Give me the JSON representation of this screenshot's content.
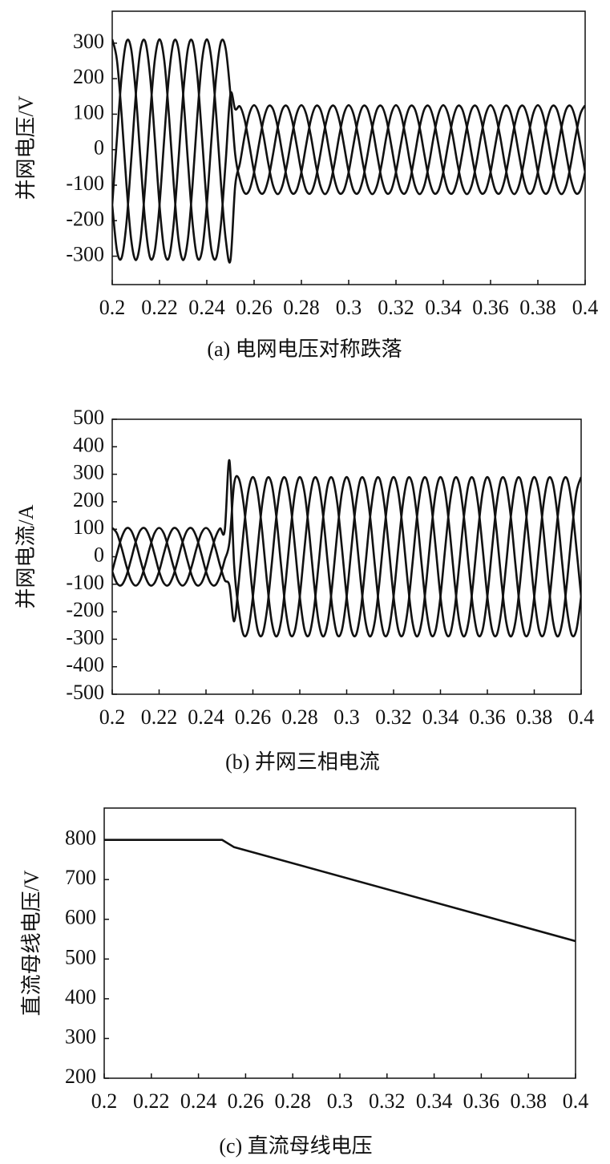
{
  "chart_data": [
    {
      "type": "line",
      "ylabel": "并网电压/V",
      "caption": "(a) 电网电压对称跌落",
      "xlim": [
        0.2,
        0.4
      ],
      "xticks": [
        0.2,
        0.22,
        0.24,
        0.26,
        0.28,
        0.3,
        0.32,
        0.34,
        0.36,
        0.38,
        0.4
      ],
      "ylim": [
        -380,
        390
      ],
      "yticks": [
        -300,
        -200,
        -100,
        0,
        100,
        200,
        300
      ],
      "x": [
        0.2,
        0.202,
        0.204,
        0.206,
        0.208,
        0.21,
        0.212,
        0.214,
        0.216,
        0.218,
        0.22,
        0.222,
        0.224,
        0.226,
        0.228,
        0.23,
        0.232,
        0.234,
        0.236,
        0.238,
        0.24,
        0.242,
        0.244,
        0.246,
        0.248,
        0.25,
        0.252,
        0.254,
        0.256,
        0.258,
        0.26,
        0.262,
        0.264,
        0.266,
        0.268,
        0.27,
        0.272,
        0.274,
        0.276,
        0.278,
        0.28,
        0.282,
        0.284,
        0.286,
        0.288,
        0.29,
        0.292,
        0.294,
        0.296,
        0.298,
        0.3,
        0.302,
        0.304,
        0.306,
        0.308,
        0.31,
        0.312,
        0.314,
        0.316,
        0.318,
        0.32,
        0.322,
        0.324,
        0.326,
        0.328,
        0.33,
        0.332,
        0.334,
        0.336,
        0.338,
        0.34,
        0.342,
        0.344,
        0.346,
        0.348,
        0.35,
        0.352,
        0.354,
        0.356,
        0.358,
        0.36,
        0.362,
        0.364,
        0.366,
        0.368,
        0.37,
        0.372,
        0.374,
        0.376,
        0.378,
        0.38,
        0.382,
        0.384,
        0.386,
        0.388,
        0.39,
        0.392,
        0.394,
        0.396,
        0.398,
        0.4
      ],
      "series": [
        {
          "color": "#111111",
          "values": [
            311,
            252,
            96,
            -96,
            -252,
            -311,
            -252,
            -96,
            96,
            252,
            311,
            252,
            96,
            -96,
            -252,
            -311,
            -252,
            -96,
            96,
            252,
            311,
            252,
            96,
            -96,
            -252,
            -311,
            -101,
            -39,
            39,
            101,
            125,
            101,
            39,
            -39,
            -101,
            -125,
            -101,
            -39,
            39,
            101,
            125,
            101,
            39,
            -39,
            -101,
            -125,
            -101,
            -39,
            39,
            101,
            125,
            101,
            39,
            -39,
            -101,
            -125,
            -101,
            -39,
            39,
            101,
            125,
            101,
            39,
            -39,
            -101,
            -125,
            -101,
            -39,
            39,
            101,
            125,
            101,
            39,
            -39,
            -101,
            -125,
            -101,
            -39,
            39,
            101,
            125,
            101,
            39,
            -39,
            -101,
            -125,
            -101,
            -39,
            39,
            101,
            125,
            101,
            39,
            -39,
            -101,
            -125,
            -101,
            -39,
            39,
            101,
            125
          ]
        },
        {
          "color": "#111111",
          "values": [
            -156,
            32,
            208,
            304,
            284,
            156,
            -32,
            -208,
            -304,
            -284,
            -156,
            32,
            208,
            304,
            284,
            156,
            -32,
            -208,
            -304,
            -284,
            -156,
            32,
            208,
            304,
            284,
            156,
            -13,
            -84,
            -122,
            -114,
            -63,
            13,
            84,
            122,
            114,
            63,
            -13,
            -84,
            -122,
            -114,
            -63,
            13,
            84,
            122,
            114,
            63,
            -13,
            -84,
            -122,
            -114,
            -63,
            13,
            84,
            122,
            114,
            63,
            -13,
            -84,
            -122,
            -114,
            -63,
            13,
            84,
            122,
            114,
            63,
            -13,
            -84,
            -122,
            -114,
            -63,
            13,
            84,
            122,
            114,
            63,
            -13,
            -84,
            -122,
            -114,
            -63,
            13,
            84,
            122,
            114,
            63,
            -13,
            -84,
            -122,
            -114,
            -63,
            13,
            84,
            122,
            114,
            63,
            -13,
            -84,
            -122,
            -114,
            -63
          ]
        },
        {
          "color": "#111111",
          "values": [
            -156,
            -284,
            -304,
            -208,
            -32,
            156,
            284,
            304,
            208,
            32,
            -156,
            -284,
            -304,
            -208,
            -32,
            156,
            284,
            304,
            208,
            32,
            -156,
            -284,
            -304,
            -208,
            -32,
            156,
            114,
            122,
            84,
            13,
            -63,
            -114,
            -122,
            -84,
            -13,
            63,
            114,
            122,
            84,
            13,
            -63,
            -114,
            -122,
            -84,
            -13,
            63,
            114,
            122,
            84,
            13,
            -63,
            -114,
            -122,
            -84,
            -13,
            63,
            114,
            122,
            84,
            13,
            -63,
            -114,
            -122,
            -84,
            -13,
            63,
            114,
            122,
            84,
            13,
            -63,
            -114,
            -122,
            -84,
            -13,
            63,
            114,
            122,
            84,
            13,
            -63,
            -114,
            -122,
            -84,
            -13,
            63,
            114,
            122,
            84,
            13,
            -63,
            -114,
            -122,
            -84,
            -13,
            63,
            114,
            122,
            84,
            13,
            -63
          ]
        }
      ]
    },
    {
      "type": "line",
      "ylabel": "并网电流/A",
      "caption": "(b) 并网三相电流",
      "xlim": [
        0.2,
        0.4
      ],
      "xticks": [
        0.2,
        0.22,
        0.24,
        0.26,
        0.28,
        0.3,
        0.32,
        0.34,
        0.36,
        0.38,
        0.4
      ],
      "ylim": [
        -500,
        500
      ],
      "yticks": [
        -500,
        -400,
        -300,
        -200,
        -100,
        0,
        100,
        200,
        300,
        400,
        500
      ],
      "x": [
        0.2,
        0.202,
        0.204,
        0.206,
        0.208,
        0.21,
        0.212,
        0.214,
        0.216,
        0.218,
        0.22,
        0.222,
        0.224,
        0.226,
        0.228,
        0.23,
        0.232,
        0.234,
        0.236,
        0.238,
        0.24,
        0.242,
        0.244,
        0.246,
        0.248,
        0.25,
        0.252,
        0.254,
        0.256,
        0.258,
        0.26,
        0.262,
        0.264,
        0.266,
        0.268,
        0.27,
        0.272,
        0.274,
        0.276,
        0.278,
        0.28,
        0.282,
        0.284,
        0.286,
        0.288,
        0.29,
        0.292,
        0.294,
        0.296,
        0.298,
        0.3,
        0.302,
        0.304,
        0.306,
        0.308,
        0.31,
        0.312,
        0.314,
        0.316,
        0.318,
        0.32,
        0.322,
        0.324,
        0.326,
        0.328,
        0.33,
        0.332,
        0.334,
        0.336,
        0.338,
        0.34,
        0.342,
        0.344,
        0.346,
        0.348,
        0.35,
        0.352,
        0.354,
        0.356,
        0.358,
        0.36,
        0.362,
        0.364,
        0.366,
        0.368,
        0.37,
        0.372,
        0.374,
        0.376,
        0.378,
        0.38,
        0.382,
        0.384,
        0.386,
        0.388,
        0.39,
        0.392,
        0.394,
        0.396,
        0.398,
        0.4
      ],
      "series": [
        {
          "color": "#111111",
          "values": [
            105,
            85,
            32,
            -32,
            -85,
            -105,
            -85,
            -32,
            32,
            85,
            105,
            85,
            32,
            -32,
            -85,
            -105,
            -85,
            -32,
            32,
            85,
            105,
            85,
            32,
            -32,
            -85,
            -105,
            -235,
            -90,
            90,
            235,
            290,
            235,
            90,
            -90,
            -235,
            -290,
            -235,
            -90,
            90,
            235,
            290,
            235,
            90,
            -90,
            -235,
            -290,
            -235,
            -90,
            90,
            235,
            290,
            235,
            90,
            -90,
            -235,
            -290,
            -235,
            -90,
            90,
            235,
            290,
            235,
            90,
            -90,
            -235,
            -290,
            -235,
            -90,
            90,
            235,
            290,
            235,
            90,
            -90,
            -235,
            -290,
            -235,
            -90,
            90,
            235,
            290,
            235,
            90,
            -90,
            -235,
            -290,
            -235,
            -90,
            90,
            235,
            290,
            235,
            90,
            -90,
            -235,
            -290,
            -235,
            -90,
            90,
            235,
            290
          ]
        },
        {
          "color": "#111111",
          "values": [
            -53,
            11,
            70,
            103,
            96,
            53,
            -11,
            -70,
            -103,
            -96,
            -53,
            11,
            70,
            103,
            96,
            53,
            -11,
            -70,
            -103,
            -96,
            -53,
            11,
            70,
            103,
            96,
            350,
            -30,
            -194,
            -284,
            -265,
            -145,
            30,
            194,
            284,
            265,
            145,
            -30,
            -194,
            -284,
            -265,
            -145,
            30,
            194,
            284,
            265,
            145,
            -30,
            -194,
            -284,
            -265,
            -145,
            30,
            194,
            284,
            265,
            145,
            -30,
            -194,
            -284,
            -265,
            -145,
            30,
            194,
            284,
            265,
            145,
            -30,
            -194,
            -284,
            -265,
            -145,
            30,
            194,
            284,
            265,
            145,
            -30,
            -194,
            -284,
            -265,
            -145,
            30,
            194,
            284,
            265,
            145,
            -30,
            -194,
            -284,
            -265,
            -145,
            30,
            194,
            284,
            265,
            145,
            -30,
            -194,
            -284,
            -265,
            -145
          ]
        },
        {
          "color": "#111111",
          "values": [
            -53,
            -96,
            -103,
            -70,
            -11,
            53,
            96,
            103,
            70,
            11,
            -53,
            -96,
            -103,
            -70,
            -11,
            53,
            96,
            103,
            70,
            11,
            -53,
            -96,
            -103,
            -70,
            -11,
            53,
            265,
            284,
            194,
            30,
            -145,
            -265,
            -284,
            -194,
            -30,
            145,
            265,
            284,
            194,
            30,
            -145,
            -265,
            -284,
            -194,
            -30,
            145,
            265,
            284,
            194,
            30,
            -145,
            -265,
            -284,
            -194,
            -30,
            145,
            265,
            284,
            194,
            30,
            -145,
            -265,
            -284,
            -194,
            -30,
            145,
            265,
            284,
            194,
            30,
            -145,
            -265,
            -284,
            -194,
            -30,
            145,
            265,
            284,
            194,
            30,
            -145,
            -265,
            -284,
            -194,
            -30,
            145,
            265,
            284,
            194,
            30,
            -145,
            -265,
            -284,
            -194,
            -30,
            145,
            265,
            284,
            194,
            30,
            -145
          ]
        }
      ]
    },
    {
      "type": "line",
      "ylabel": "直流母线电压/V",
      "caption": "(c) 直流母线电压",
      "xlim": [
        0.2,
        0.4
      ],
      "xticks": [
        0.2,
        0.22,
        0.24,
        0.26,
        0.28,
        0.3,
        0.32,
        0.34,
        0.36,
        0.38,
        0.4
      ],
      "ylim": [
        200,
        880
      ],
      "yticks": [
        200,
        300,
        400,
        500,
        600,
        700,
        800
      ],
      "x": [
        0.2,
        0.25,
        0.255,
        0.4
      ],
      "series": [
        {
          "color": "#111111",
          "values": [
            800,
            800,
            782,
            545
          ]
        }
      ]
    }
  ]
}
